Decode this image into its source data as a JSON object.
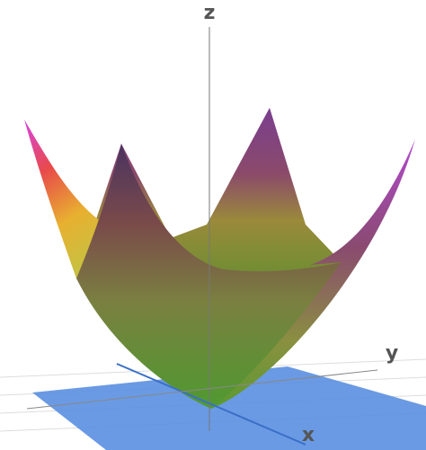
{
  "axes": {
    "z": "z",
    "y": "y",
    "x": "x"
  }
}
